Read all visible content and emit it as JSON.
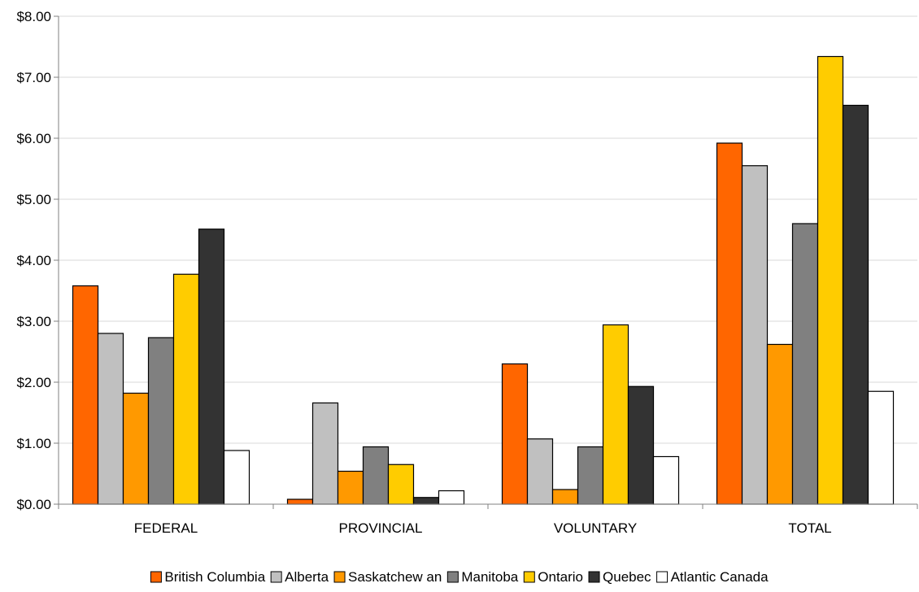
{
  "chart_data": {
    "type": "bar",
    "title": "",
    "xlabel": "",
    "ylabel": "",
    "categories": [
      "FEDERAL",
      "PROVINCIAL",
      "VOLUNTARY",
      "TOTAL"
    ],
    "ylim": [
      0,
      8
    ],
    "yticks": [
      "$0.00",
      "$1.00",
      "$2.00",
      "$3.00",
      "$4.00",
      "$5.00",
      "$6.00",
      "$7.00",
      "$8.00"
    ],
    "grid": true,
    "legend_position": "bottom",
    "series": [
      {
        "name": "British Columbia",
        "color": "#FF6600",
        "values": [
          3.58,
          0.08,
          2.3,
          5.92
        ]
      },
      {
        "name": "Alberta",
        "color": "#C0C0C0",
        "values": [
          2.8,
          1.66,
          1.07,
          5.55
        ]
      },
      {
        "name": "Saskatchew an",
        "color": "#FF9900",
        "values": [
          1.82,
          0.54,
          0.24,
          2.62
        ]
      },
      {
        "name": "Manitoba",
        "color": "#808080",
        "values": [
          2.73,
          0.94,
          0.94,
          4.6
        ]
      },
      {
        "name": "Ontario",
        "color": "#FFCC00",
        "values": [
          3.77,
          0.65,
          2.94,
          7.34
        ]
      },
      {
        "name": "Quebec",
        "color": "#333333",
        "values": [
          4.51,
          0.11,
          1.93,
          6.54
        ]
      },
      {
        "name": "Atlantic Canada",
        "color": "#FFFFFF",
        "values": [
          0.88,
          0.22,
          0.78,
          1.85
        ]
      }
    ]
  }
}
